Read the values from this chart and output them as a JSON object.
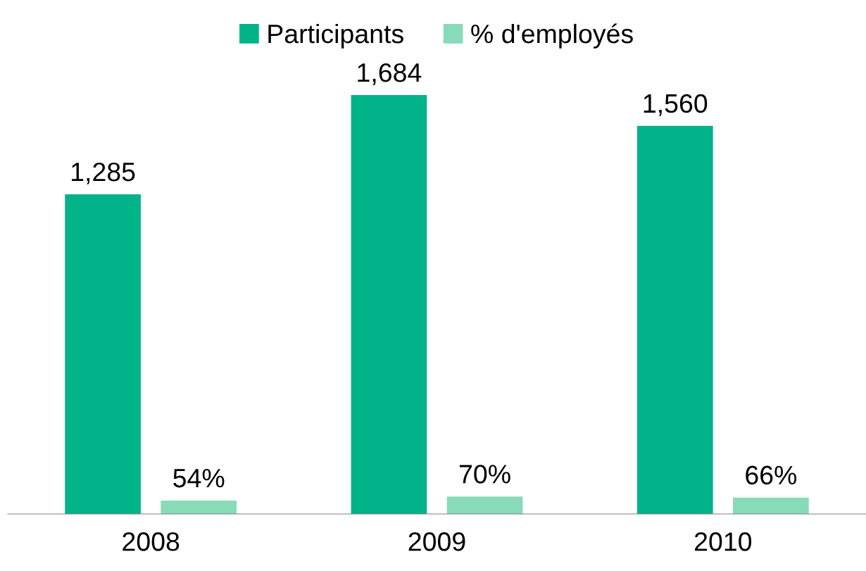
{
  "chart_data": {
    "type": "bar",
    "categories": [
      "2008",
      "2009",
      "2010"
    ],
    "series": [
      {
        "name": "Participants",
        "color": "#00b388",
        "values": [
          1285,
          1684,
          1560
        ],
        "value_labels": [
          "1,285",
          "1,684",
          "1,560"
        ]
      },
      {
        "name": "% d'employés",
        "color": "#88dbb8",
        "values": [
          54,
          70,
          66
        ],
        "value_labels": [
          "54%",
          "70%",
          "66%"
        ]
      }
    ],
    "legend": "top",
    "grid": false
  }
}
